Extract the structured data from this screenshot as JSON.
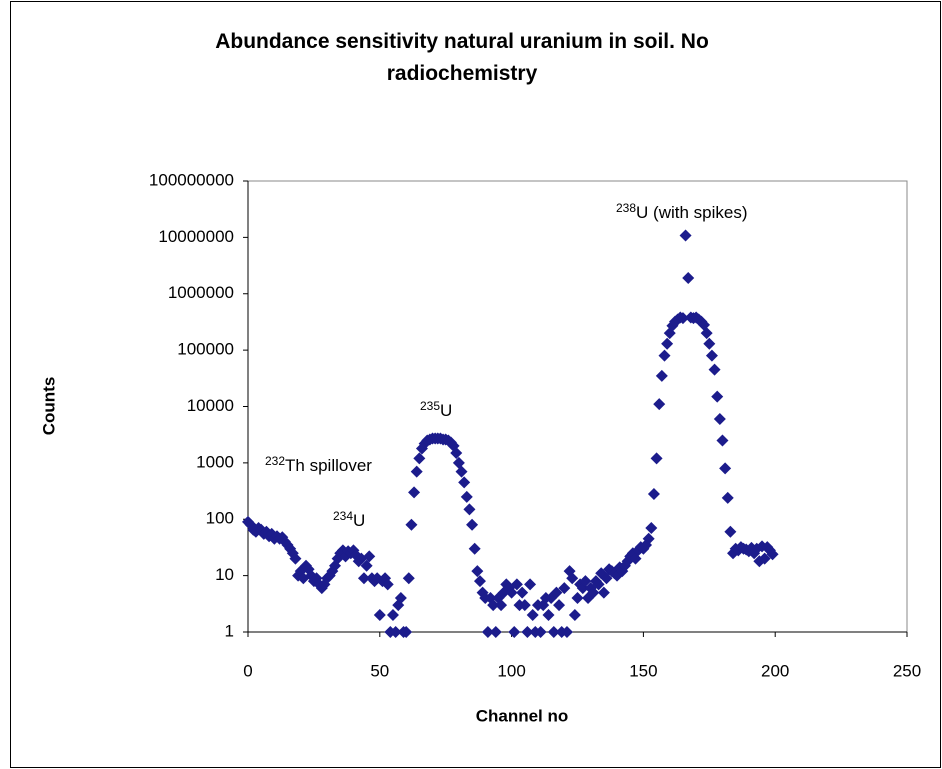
{
  "chart_data": {
    "type": "scatter",
    "title": "Abundance sensitivity natural uranium in soil. No radiochemistry",
    "x_label": "Channel no",
    "y_label": "Counts",
    "color": "#1c1c8c",
    "log_y": true,
    "grid": false,
    "xlim": [
      0,
      250
    ],
    "xticks": [
      0,
      50,
      100,
      150,
      200,
      250
    ],
    "ylim": [
      1,
      100000000
    ],
    "yticks": [
      1,
      10,
      100,
      1000,
      10000,
      100000,
      1000000,
      10000000,
      100000000
    ],
    "annotations": [
      {
        "sup": "238",
        "text": "U (with spikes)"
      },
      {
        "sup": "235",
        "text": "U"
      },
      {
        "sup": "232",
        "text": "Th spillover"
      },
      {
        "sup": "234",
        "text": "U"
      }
    ],
    "x": [
      0,
      1,
      2,
      3,
      4,
      5,
      6,
      7,
      8,
      9,
      10,
      11,
      12,
      13,
      14,
      15,
      16,
      17,
      18,
      19,
      20,
      21,
      22,
      23,
      24,
      25,
      26,
      27,
      28,
      29,
      30,
      31,
      32,
      33,
      34,
      35,
      36,
      37,
      38,
      39,
      40,
      41,
      42,
      43,
      44,
      45,
      46,
      47,
      48,
      49,
      50,
      51,
      52,
      53,
      54,
      55,
      56,
      57,
      58,
      59,
      60,
      61,
      62,
      63,
      64,
      65,
      66,
      67,
      68,
      69,
      70,
      71,
      72,
      73,
      74,
      75,
      76,
      77,
      78,
      79,
      80,
      81,
      82,
      83,
      84,
      85,
      86,
      87,
      88,
      89,
      90,
      91,
      92,
      93,
      94,
      95,
      96,
      97,
      98,
      99,
      100,
      101,
      102,
      103,
      104,
      105,
      106,
      107,
      108,
      109,
      110,
      111,
      112,
      113,
      114,
      115,
      116,
      117,
      118,
      119,
      120,
      121,
      122,
      123,
      124,
      125,
      126,
      127,
      128,
      129,
      130,
      131,
      132,
      133,
      134,
      135,
      136,
      137,
      138,
      139,
      140,
      141,
      142,
      143,
      144,
      145,
      146,
      147,
      148,
      149,
      150,
      151,
      152,
      153,
      154,
      155,
      156,
      157,
      158,
      159,
      160,
      161,
      162,
      163,
      164,
      165,
      166,
      167,
      168,
      169,
      170,
      171,
      172,
      173,
      174,
      175,
      176,
      177,
      178,
      179,
      180,
      181,
      182,
      183,
      184,
      185,
      186,
      187,
      188,
      189,
      190,
      191,
      192,
      193,
      194,
      195,
      196,
      197,
      198,
      199
    ],
    "values": [
      90,
      80,
      65,
      60,
      70,
      65,
      55,
      60,
      50,
      55,
      45,
      50,
      45,
      48,
      40,
      35,
      30,
      25,
      20,
      10,
      12,
      9,
      15,
      13,
      10,
      8,
      9,
      7,
      6,
      7,
      9,
      10,
      12,
      15,
      20,
      25,
      28,
      22,
      27,
      25,
      28,
      23,
      18,
      20,
      9,
      15,
      22,
      9,
      8,
      9,
      2,
      8,
      9,
      7,
      1,
      2,
      1,
      3,
      4,
      1,
      1,
      9,
      80,
      300,
      700,
      1200,
      1800,
      2200,
      2500,
      2600,
      2700,
      2700,
      2700,
      2700,
      2600,
      2600,
      2500,
      2300,
      2000,
      1500,
      1000,
      700,
      450,
      250,
      150,
      80,
      30,
      12,
      8,
      5,
      4,
      1,
      4,
      3,
      1,
      4,
      3,
      5,
      7,
      6,
      5,
      1,
      7,
      3,
      5,
      3,
      1,
      7,
      2,
      1,
      3,
      1,
      3,
      4,
      2,
      4,
      1,
      5,
      3,
      1,
      6,
      1,
      12,
      9,
      2,
      4,
      7,
      6,
      8,
      4,
      6,
      5,
      8,
      7,
      11,
      5,
      9,
      13,
      12,
      11,
      10,
      14,
      12,
      15,
      18,
      22,
      25,
      20,
      28,
      32,
      30,
      35,
      45,
      70,
      280,
      1200,
      11000,
      35000,
      80000,
      130000,
      200000,
      270000,
      320000,
      350000,
      380000,
      370000,
      10800000,
      1900000,
      380000,
      370000,
      380000,
      350000,
      320000,
      280000,
      200000,
      130000,
      80000,
      45000,
      15000,
      6000,
      2500,
      800,
      240,
      60,
      25,
      30,
      28,
      32,
      30,
      29,
      27,
      31,
      25,
      30,
      18,
      33,
      20,
      32,
      28,
      24
    ]
  }
}
